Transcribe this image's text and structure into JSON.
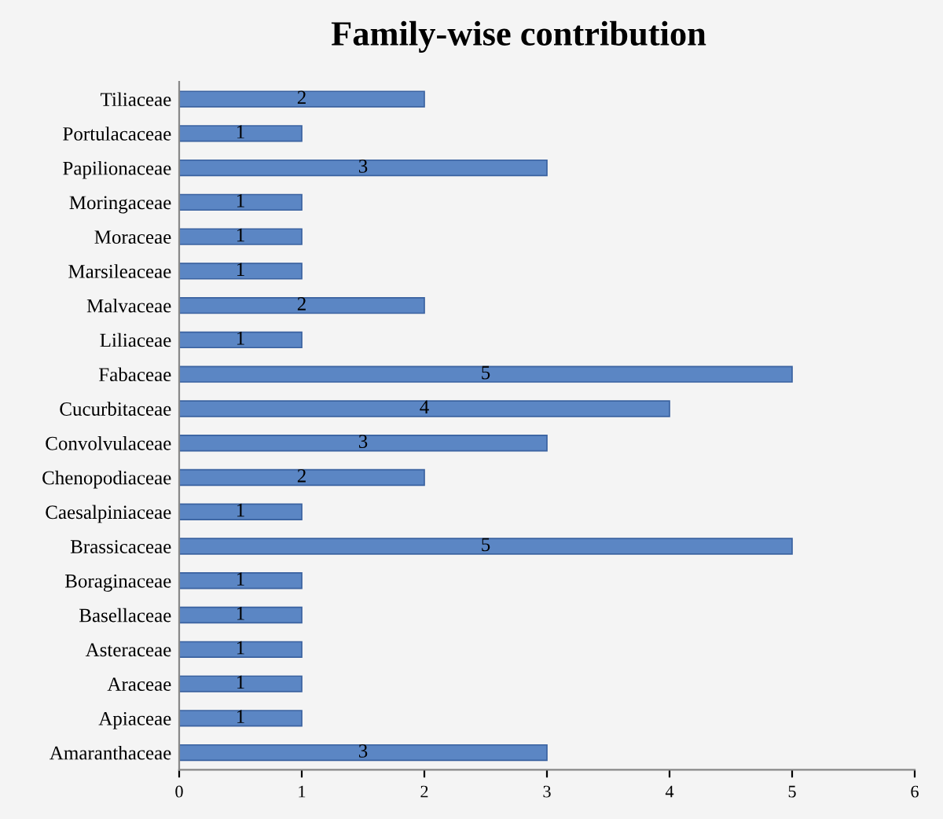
{
  "chart_data": {
    "type": "bar",
    "orientation": "horizontal",
    "title": "Family-wise contribution",
    "categories": [
      "Tiliaceae",
      "Portulacaceae",
      "Papilionaceae",
      "Moringaceae",
      "Moraceae",
      "Marsileaceae",
      "Malvaceae",
      "Liliaceae",
      "Fabaceae",
      "Cucurbitaceae",
      "Convolvulaceae",
      "Chenopodiaceae",
      "Caesalpiniaceae",
      "Brassicaceae",
      "Boraginaceae",
      "Basellaceae",
      "Asteraceae",
      "Araceae",
      "Apiaceae",
      "Amaranthaceae"
    ],
    "values": [
      2,
      1,
      3,
      1,
      1,
      1,
      2,
      1,
      5,
      4,
      3,
      2,
      1,
      5,
      1,
      1,
      1,
      1,
      1,
      3
    ],
    "color": "#5b86c4",
    "xlim": [
      0,
      6
    ],
    "xticks": [
      0,
      1,
      2,
      3,
      4,
      5,
      6
    ],
    "grid": false,
    "data_labels": true
  }
}
